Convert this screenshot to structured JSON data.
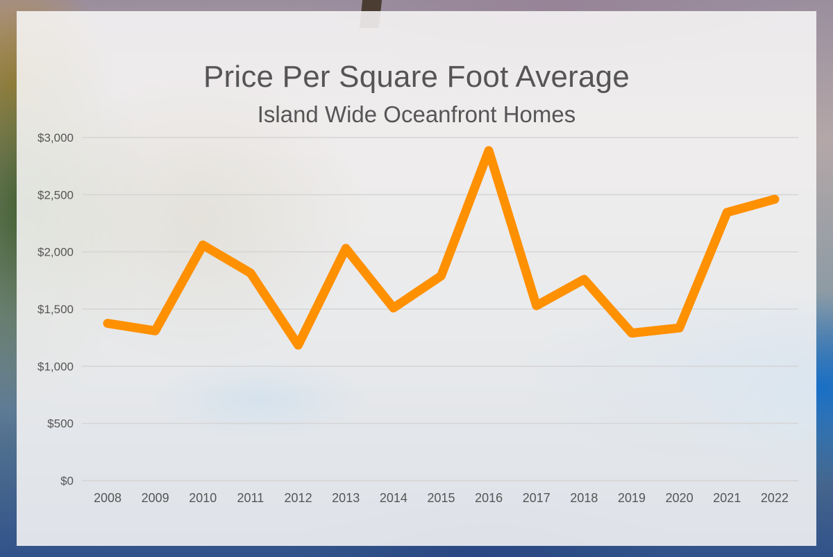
{
  "title": "Price Per Square Foot Average",
  "subtitle": "Island Wide Oceanfront Homes",
  "line_color": "#ff9000",
  "grid_color": "#d4d4d4",
  "chart_data": {
    "type": "line",
    "title": "Price Per Square Foot Average",
    "subtitle": "Island Wide Oceanfront Homes",
    "xlabel": "",
    "ylabel": "",
    "categories": [
      "2008",
      "2009",
      "2010",
      "2011",
      "2012",
      "2013",
      "2014",
      "2015",
      "2016",
      "2017",
      "2018",
      "2019",
      "2020",
      "2021",
      "2022"
    ],
    "series": [
      {
        "name": "Price Per Square Foot",
        "values": [
          1375,
          1310,
          2060,
          1815,
          1185,
          2030,
          1510,
          1790,
          2885,
          1530,
          1760,
          1290,
          1335,
          2345,
          2460
        ]
      }
    ],
    "ylim": [
      0,
      3000
    ],
    "yticks": [
      0,
      500,
      1000,
      1500,
      2000,
      2500,
      3000
    ],
    "ytick_labels": [
      "$0",
      "$500",
      "$1,000",
      "$1,500",
      "$2,000",
      "$2,500",
      "$3,000"
    ],
    "grid": true,
    "legend": "none"
  }
}
